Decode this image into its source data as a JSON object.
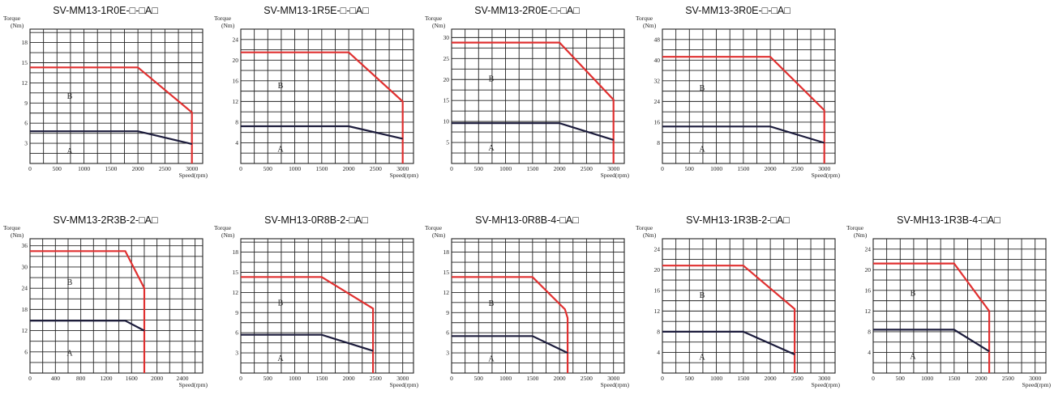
{
  "colors": {
    "peak_curve": "#e03030",
    "continuous_curve": "#1c1c3c",
    "grid": "#222222"
  },
  "chart_data": [
    {
      "type": "line",
      "title": "SV-MM13-1R0E-□-□A□",
      "y_axis_label": "Torque",
      "y_unit": "(Nm)",
      "x_axis_label": "Speed(rpm)",
      "xlim": [
        0,
        3200
      ],
      "ylim": [
        0,
        20
      ],
      "x_ticks": [
        "0",
        "500",
        "1000",
        "1500",
        "2000",
        "2500",
        "3000"
      ],
      "y_ticks": [
        "3",
        "6",
        "9",
        "12",
        "15",
        "18"
      ],
      "regions": [
        "A",
        "B"
      ],
      "series": [
        {
          "role": "peak",
          "x": [
            0,
            2000,
            3000,
            3000
          ],
          "y": [
            14.3,
            14.3,
            7.6,
            0
          ]
        },
        {
          "role": "continuous",
          "x": [
            0,
            2000,
            3000
          ],
          "y": [
            4.8,
            4.8,
            2.9
          ]
        }
      ]
    },
    {
      "type": "line",
      "title": "SV-MM13-1R5E-□-□A□",
      "y_axis_label": "Torque",
      "y_unit": "(Nm)",
      "x_axis_label": "Speed(rpm)",
      "xlim": [
        0,
        3200
      ],
      "ylim": [
        0,
        26
      ],
      "x_ticks": [
        "0",
        "500",
        "1000",
        "1500",
        "2000",
        "2500",
        "3000"
      ],
      "y_ticks": [
        "4",
        "8",
        "12",
        "16",
        "20",
        "24"
      ],
      "regions": [
        "A",
        "B"
      ],
      "series": [
        {
          "role": "peak",
          "x": [
            0,
            2000,
            3000,
            3000
          ],
          "y": [
            21.5,
            21.5,
            12,
            0
          ]
        },
        {
          "role": "continuous",
          "x": [
            0,
            2000,
            3000
          ],
          "y": [
            7.2,
            7.2,
            4.8
          ]
        }
      ]
    },
    {
      "type": "line",
      "title": "SV-MM13-2R0E-□-□A□",
      "y_axis_label": "Torque",
      "y_unit": "(Nm)",
      "x_axis_label": "Speed(rpm)",
      "xlim": [
        0,
        3200
      ],
      "ylim": [
        0,
        32
      ],
      "x_ticks": [
        "0",
        "500",
        "1000",
        "1500",
        "2000",
        "2500",
        "3000"
      ],
      "y_ticks": [
        "5",
        "10",
        "15",
        "20",
        "25",
        "30"
      ],
      "regions": [
        "A",
        "B"
      ],
      "series": [
        {
          "role": "peak",
          "x": [
            0,
            2000,
            3000,
            3000
          ],
          "y": [
            28.8,
            28.8,
            15.2,
            0
          ]
        },
        {
          "role": "continuous",
          "x": [
            0,
            2000,
            3000
          ],
          "y": [
            9.6,
            9.6,
            5.6
          ]
        }
      ]
    },
    {
      "type": "line",
      "title": "SV-MM13-3R0E-□-□A□",
      "y_axis_label": "Torque",
      "y_unit": "(Nm)",
      "x_axis_label": "Speed(rpm)",
      "xlim": [
        0,
        3200
      ],
      "ylim": [
        0,
        52
      ],
      "x_ticks": [
        "0",
        "500",
        "1000",
        "1500",
        "2000",
        "2500",
        "3000"
      ],
      "y_ticks": [
        "8",
        "16",
        "24",
        "32",
        "40",
        "48"
      ],
      "regions": [
        "A",
        "B"
      ],
      "series": [
        {
          "role": "peak",
          "x": [
            0,
            2000,
            3000,
            3000
          ],
          "y": [
            41.3,
            41.3,
            20.6,
            0
          ]
        },
        {
          "role": "continuous",
          "x": [
            0,
            2000,
            3000
          ],
          "y": [
            14.3,
            14.3,
            8
          ]
        }
      ]
    },
    {
      "type": "line",
      "title": "SV-MM13-2R3B-2-□A□",
      "y_axis_label": "Torque",
      "y_unit": "(Nm)",
      "x_axis_label": "Speed(rpm)",
      "xlim": [
        0,
        2720
      ],
      "ylim": [
        0,
        38
      ],
      "x_ticks": [
        "0",
        "400",
        "800",
        "1200",
        "1600",
        "2000",
        "2400"
      ],
      "y_ticks": [
        "6",
        "12",
        "18",
        "24",
        "30",
        "36"
      ],
      "regions": [
        "A",
        "B"
      ],
      "series": [
        {
          "role": "peak",
          "x": [
            0,
            1500,
            1800,
            1800
          ],
          "y": [
            34.5,
            34.5,
            24,
            0
          ]
        },
        {
          "role": "continuous",
          "x": [
            0,
            1500,
            1800
          ],
          "y": [
            14.8,
            14.8,
            12
          ]
        }
      ]
    },
    {
      "type": "line",
      "title": "SV-MH13-0R8B-2-□A□",
      "y_axis_label": "Torque",
      "y_unit": "(Nm)",
      "x_axis_label": "Speed(rpm)",
      "xlim": [
        0,
        3200
      ],
      "ylim": [
        0,
        20
      ],
      "x_ticks": [
        "0",
        "500",
        "1000",
        "1500",
        "2000",
        "2500",
        "3000"
      ],
      "y_ticks": [
        "3",
        "6",
        "9",
        "12",
        "15",
        "18"
      ],
      "regions": [
        "A",
        "B"
      ],
      "series": [
        {
          "role": "peak",
          "x": [
            0,
            1500,
            2450,
            2450
          ],
          "y": [
            14.3,
            14.3,
            9.6,
            0
          ]
        },
        {
          "role": "continuous",
          "x": [
            0,
            1500,
            2450
          ],
          "y": [
            5.7,
            5.7,
            3.3
          ]
        }
      ]
    },
    {
      "type": "line",
      "title": "SV-MH13-0R8B-4-□A□",
      "y_axis_label": "Torque",
      "y_unit": "(Nm)",
      "x_axis_label": "Speed(rpm)",
      "xlim": [
        0,
        3200
      ],
      "ylim": [
        0,
        20
      ],
      "x_ticks": [
        "0",
        "500",
        "1000",
        "1500",
        "2000",
        "2500",
        "3000"
      ],
      "y_ticks": [
        "3",
        "6",
        "9",
        "12",
        "15",
        "18"
      ],
      "regions": [
        "A",
        "B"
      ],
      "series": [
        {
          "role": "peak",
          "x": [
            0,
            1500,
            2100,
            2150,
            2150
          ],
          "y": [
            14.3,
            14.3,
            9.5,
            8.2,
            0
          ]
        },
        {
          "role": "continuous",
          "x": [
            0,
            1500,
            2150
          ],
          "y": [
            5.5,
            5.5,
            3
          ]
        }
      ]
    },
    {
      "type": "line",
      "title": "SV-MH13-1R3B-2-□A□",
      "y_axis_label": "Torque",
      "y_unit": "(Nm)",
      "x_axis_label": "Speed(rpm)",
      "xlim": [
        0,
        3200
      ],
      "ylim": [
        0,
        26
      ],
      "x_ticks": [
        "0",
        "500",
        "1000",
        "1500",
        "2000",
        "2500",
        "3000"
      ],
      "y_ticks": [
        "4",
        "8",
        "12",
        "16",
        "20",
        "24"
      ],
      "regions": [
        "A",
        "B"
      ],
      "series": [
        {
          "role": "peak",
          "x": [
            0,
            1500,
            2450,
            2450
          ],
          "y": [
            20.8,
            20.8,
            12.4,
            0
          ]
        },
        {
          "role": "continuous",
          "x": [
            0,
            1500,
            2450
          ],
          "y": [
            8,
            8,
            3.6
          ]
        }
      ]
    },
    {
      "type": "line",
      "title": "SV-MH13-1R3B-4-□A□",
      "y_axis_label": "Torque",
      "y_unit": "(Nm)",
      "x_axis_label": "Speed(rpm)",
      "xlim": [
        0,
        3200
      ],
      "ylim": [
        0,
        26
      ],
      "x_ticks": [
        "0",
        "500",
        "1000",
        "1500",
        "2000",
        "2500",
        "3000"
      ],
      "y_ticks": [
        "4",
        "8",
        "12",
        "16",
        "20",
        "24"
      ],
      "regions": [
        "A",
        "B"
      ],
      "series": [
        {
          "role": "peak",
          "x": [
            0,
            1500,
            2150,
            2150
          ],
          "y": [
            21.2,
            21.2,
            12,
            0
          ]
        },
        {
          "role": "continuous",
          "x": [
            0,
            1500,
            2150
          ],
          "y": [
            8.4,
            8.4,
            4.2
          ]
        }
      ]
    }
  ]
}
